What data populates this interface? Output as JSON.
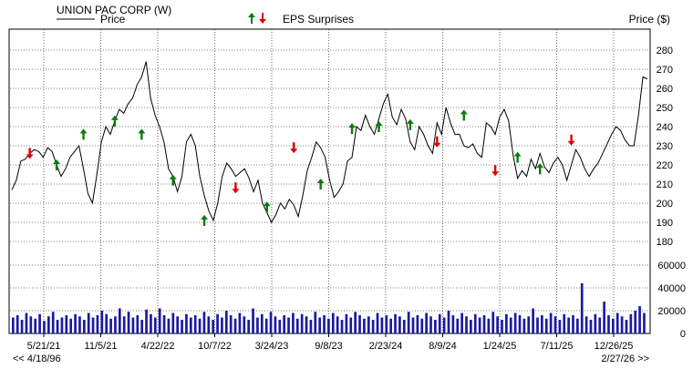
{
  "legend": {
    "company": "UNION PAC CORP (W)",
    "price_label": "Price",
    "eps_label": "EPS Surprises",
    "y_title": "Price ($)"
  },
  "nav": {
    "back_label": "<< 4/18/96",
    "forward_label": "2/27/26 >>"
  },
  "colors": {
    "price_line": "#000000",
    "up_arrow": "#0a7a0a",
    "down_arrow": "#e00000",
    "volume_bar": "#1a1aa0",
    "grid": "#000000"
  },
  "chart_data": {
    "type": "line",
    "title": "UNION PAC CORP (W)",
    "ylabel": "Price ($)",
    "x_tick_labels": [
      "5/21/21",
      "11/5/21",
      "4/22/22",
      "10/7/22",
      "3/24/23",
      "9/8/23",
      "2/23/24",
      "8/9/24",
      "1/24/25",
      "7/11/25",
      "12/26/25"
    ],
    "price": {
      "ylim": [
        170,
        290
      ],
      "y_ticks": [
        180,
        190,
        200,
        210,
        220,
        230,
        240,
        250,
        260,
        270,
        280
      ],
      "series": [
        {
          "name": "Price",
          "values": [
            207,
            212,
            222,
            223,
            226,
            228,
            227,
            224,
            229,
            227,
            220,
            214,
            218,
            224,
            227,
            230,
            218,
            205,
            200,
            215,
            232,
            240,
            236,
            243,
            249,
            247,
            252,
            255,
            262,
            266,
            274,
            255,
            246,
            240,
            232,
            218,
            214,
            206,
            214,
            232,
            236,
            230,
            214,
            204,
            196,
            191,
            200,
            214,
            221,
            218,
            214,
            216,
            218,
            213,
            206,
            212,
            200,
            195,
            190,
            194,
            200,
            197,
            202,
            199,
            193,
            204,
            217,
            224,
            232,
            229,
            224,
            212,
            203,
            206,
            210,
            222,
            224,
            240,
            238,
            246,
            240,
            236,
            244,
            252,
            257,
            245,
            241,
            249,
            244,
            232,
            228,
            240,
            236,
            230,
            226,
            242,
            236,
            250,
            242,
            236,
            236,
            230,
            229,
            231,
            226,
            224,
            242,
            240,
            236,
            245,
            249,
            243,
            225,
            213,
            217,
            214,
            223,
            218,
            226,
            219,
            216,
            221,
            224,
            220,
            212,
            220,
            228,
            224,
            218,
            214,
            218,
            221,
            226,
            231,
            236,
            240,
            238,
            233,
            230,
            230,
            246,
            266,
            265
          ]
        }
      ],
      "eps_surprises": [
        {
          "index": 4,
          "price": 226,
          "dir": "down"
        },
        {
          "index": 10,
          "price": 220,
          "dir": "up"
        },
        {
          "index": 16,
          "price": 236,
          "dir": "up"
        },
        {
          "index": 23,
          "price": 243,
          "dir": "up"
        },
        {
          "index": 29,
          "price": 236,
          "dir": "up"
        },
        {
          "index": 36,
          "price": 212,
          "dir": "up"
        },
        {
          "index": 43,
          "price": 191,
          "dir": "up"
        },
        {
          "index": 50,
          "price": 208,
          "dir": "down"
        },
        {
          "index": 57,
          "price": 198,
          "dir": "up"
        },
        {
          "index": 63,
          "price": 229,
          "dir": "down"
        },
        {
          "index": 69,
          "price": 210,
          "dir": "up"
        },
        {
          "index": 76,
          "price": 239,
          "dir": "up"
        },
        {
          "index": 82,
          "price": 240,
          "dir": "up"
        },
        {
          "index": 89,
          "price": 241,
          "dir": "up"
        },
        {
          "index": 95,
          "price": 232,
          "dir": "down"
        },
        {
          "index": 101,
          "price": 246,
          "dir": "up"
        },
        {
          "index": 108,
          "price": 217,
          "dir": "down"
        },
        {
          "index": 113,
          "price": 224,
          "dir": "up"
        },
        {
          "index": 118,
          "price": 218,
          "dir": "up"
        },
        {
          "index": 125,
          "price": 233,
          "dir": "down"
        }
      ]
    },
    "volume": {
      "ylim": [
        0,
        60000
      ],
      "y_ticks": [
        0,
        20000,
        40000,
        60000
      ],
      "values": [
        14000,
        16000,
        12000,
        18000,
        15000,
        13000,
        17000,
        11000,
        15000,
        19000,
        12000,
        14000,
        16000,
        13000,
        17000,
        15000,
        12000,
        18000,
        14000,
        16000,
        20000,
        17000,
        13000,
        15000,
        22000,
        15000,
        19000,
        14000,
        16000,
        12000,
        21000,
        17000,
        14000,
        22000,
        16000,
        13000,
        18000,
        15000,
        12000,
        17000,
        14000,
        16000,
        13000,
        19000,
        15000,
        12000,
        17000,
        14000,
        20000,
        16000,
        13000,
        18000,
        15000,
        12000,
        22000,
        14000,
        17000,
        13000,
        19000,
        15000,
        12000,
        16000,
        14000,
        18000,
        13000,
        17000,
        15000,
        12000,
        19000,
        14000,
        16000,
        13000,
        18000,
        15000,
        12000,
        17000,
        14000,
        19000,
        16000,
        13000,
        15000,
        12000,
        18000,
        14000,
        16000,
        13000,
        17000,
        15000,
        12000,
        19000,
        14000,
        16000,
        13000,
        18000,
        15000,
        12000,
        17000,
        14000,
        20000,
        16000,
        13000,
        18000,
        15000,
        12000,
        17000,
        14000,
        16000,
        13000,
        19000,
        15000,
        12000,
        17000,
        14000,
        18000,
        16000,
        13000,
        15000,
        22000,
        14000,
        16000,
        13000,
        18000,
        15000,
        12000,
        17000,
        14000,
        16000,
        13000,
        44000,
        15000,
        12000,
        17000,
        14000,
        28000,
        16000,
        13000,
        18000,
        15000,
        12000,
        17000,
        20000,
        24000,
        18000
      ]
    },
    "grid": true,
    "legend_position": "top-left"
  }
}
